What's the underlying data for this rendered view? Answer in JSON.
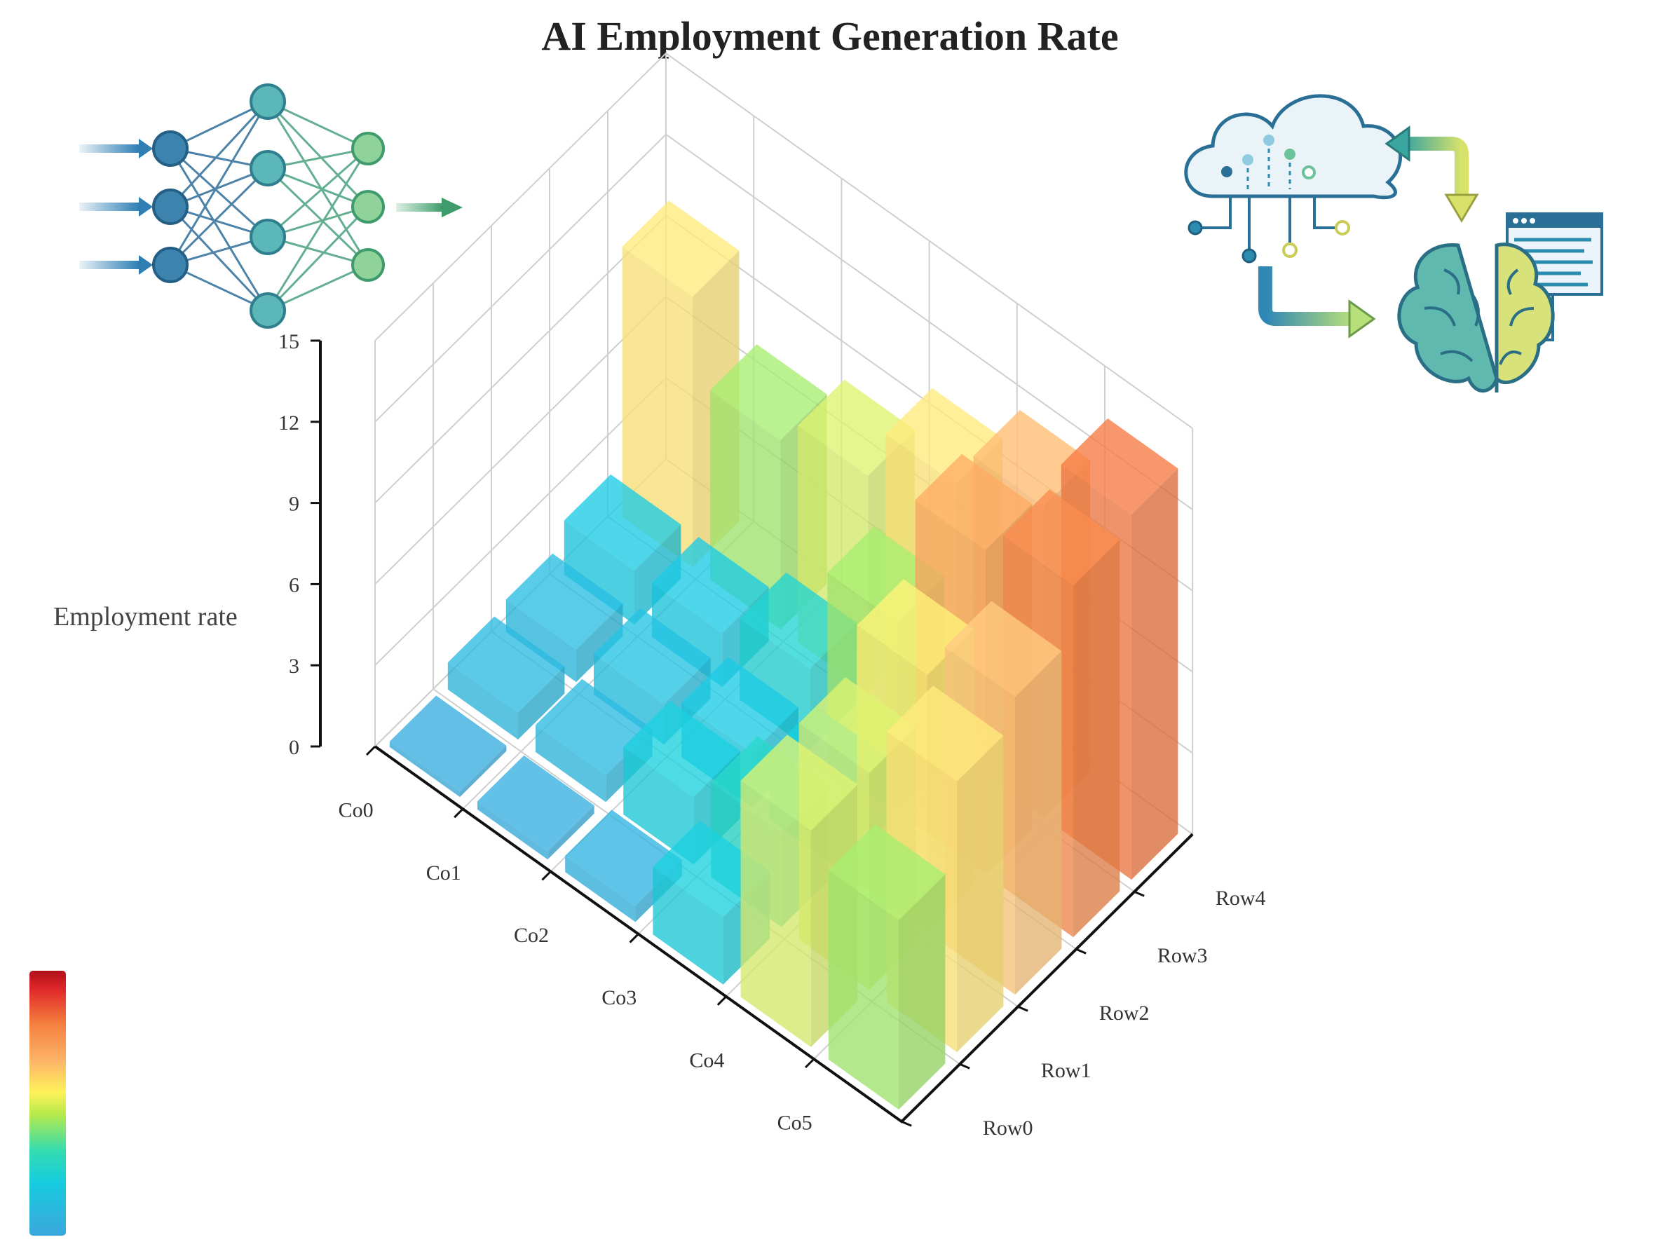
{
  "chart_data": {
    "type": "bar3d",
    "title": "AI Employment Generation Rate",
    "zlabel": "Employment rate",
    "zlim": [
      0,
      15
    ],
    "zticks": [
      0,
      3,
      6,
      9,
      12,
      15
    ],
    "columns": [
      "Co0",
      "Co1",
      "Co2",
      "Co3",
      "Co4",
      "Co5"
    ],
    "rows": [
      "Row0",
      "Row1",
      "Row2",
      "Row3",
      "Row4"
    ],
    "values": [
      [
        0.2,
        0.3,
        0.6,
        2.5,
        8.0,
        7.0
      ],
      [
        1.0,
        1.0,
        2.5,
        3.5,
        8.0,
        10.0
      ],
      [
        1.2,
        1.5,
        2.0,
        2.5,
        9.5,
        11.0
      ],
      [
        2.0,
        2.0,
        3.0,
        7.0,
        12.0,
        13.0
      ],
      [
        10.0,
        7.0,
        8.0,
        10.0,
        11.5,
        13.5
      ]
    ],
    "colormap": "turbo-like (blue → cyan → green → yellow → orange → red)",
    "colorbar": true,
    "grid": true
  },
  "icons": {
    "left": "neural-network-icon",
    "right": "cloud-brain-ai-icon"
  }
}
